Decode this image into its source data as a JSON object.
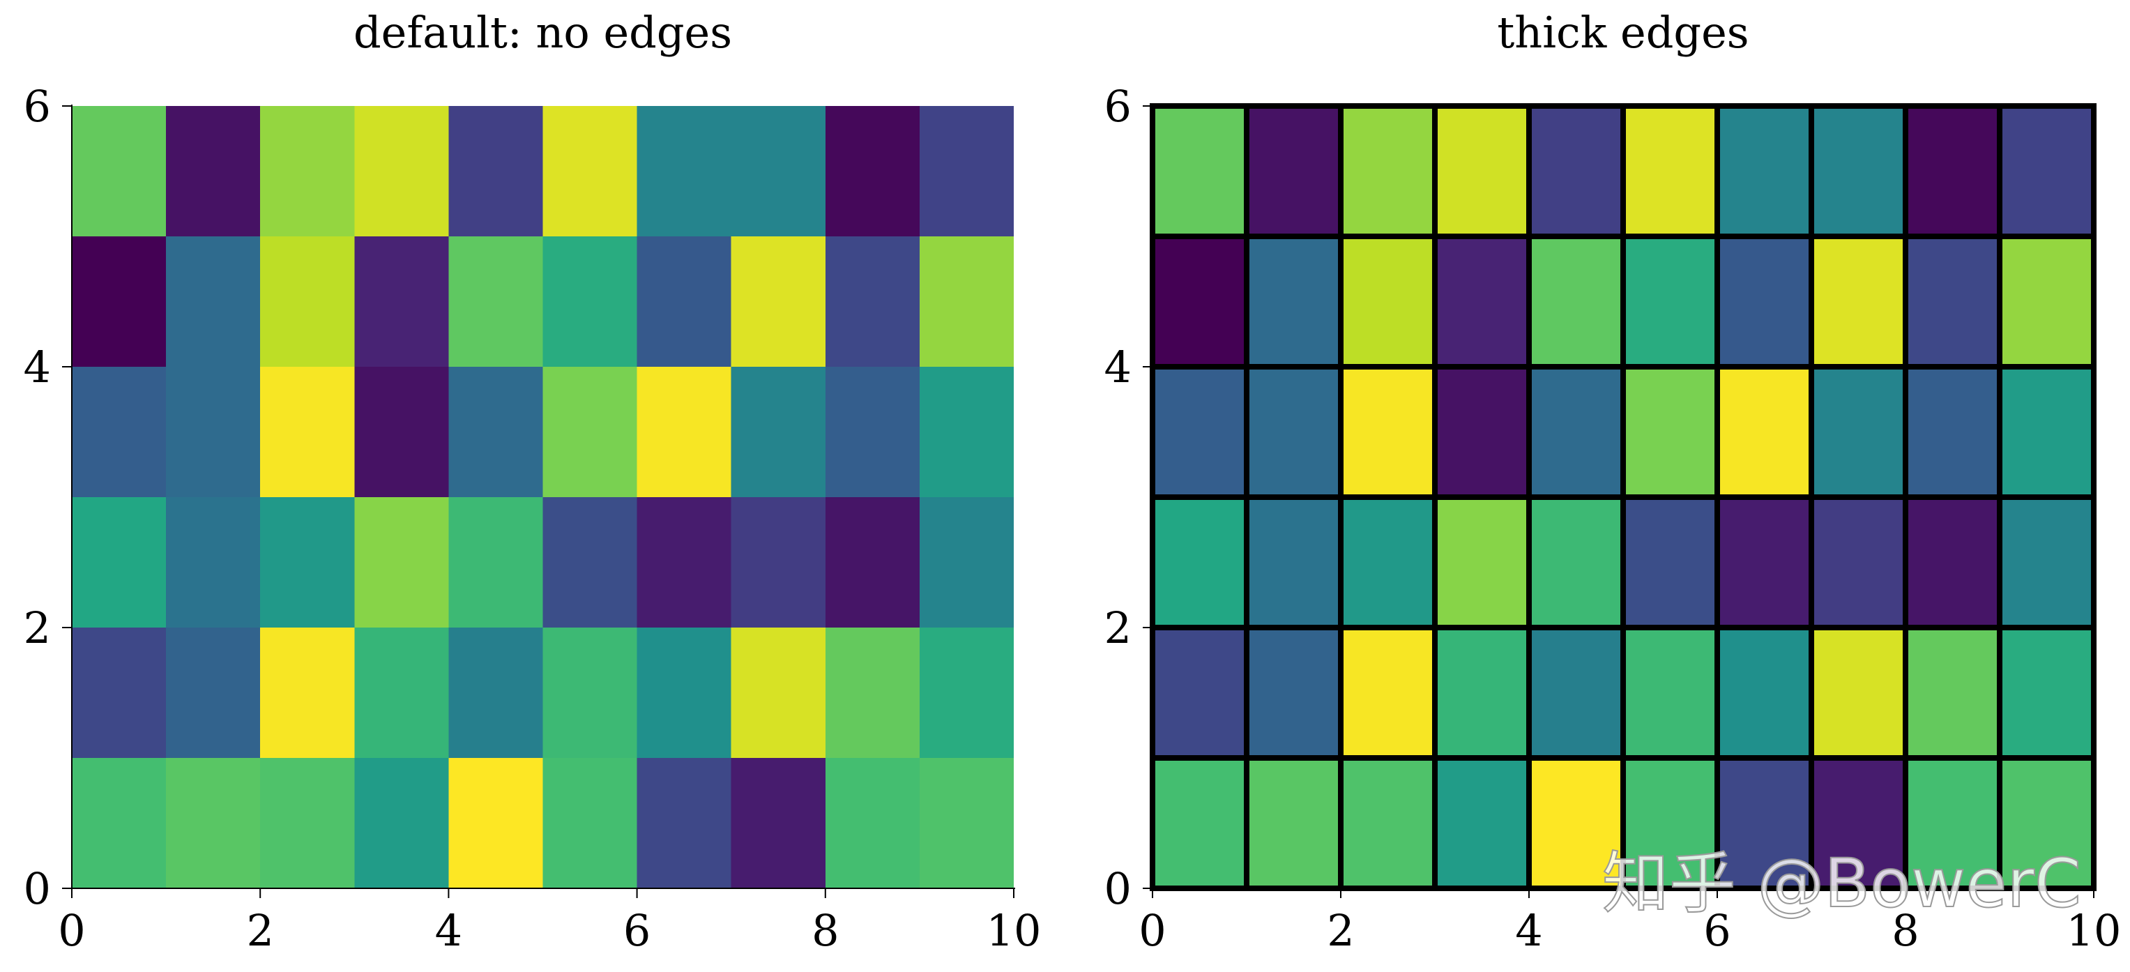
{
  "colormap": "viridis",
  "watermark": "知乎 @BowerC",
  "chart_data": [
    {
      "type": "heatmap",
      "title": "default: no edges",
      "edges": "none",
      "x_edges": [
        0,
        1,
        2,
        3,
        4,
        5,
        6,
        7,
        8,
        9,
        10
      ],
      "y_edges": [
        0,
        1,
        2,
        3,
        4,
        5,
        6
      ],
      "xlim": [
        0,
        10
      ],
      "ylim": [
        0,
        6
      ],
      "x_ticks": [
        0,
        2,
        4,
        6,
        8,
        10
      ],
      "y_ticks": [
        0,
        2,
        4,
        6
      ],
      "x_tick_labels": [
        "0",
        "2",
        "4",
        "6",
        "8",
        "10"
      ],
      "y_tick_labels": [
        "0",
        "2",
        "4",
        "6"
      ],
      "rows_bottom_to_top": [
        [
          0.7,
          0.74,
          0.72,
          0.55,
          1.0,
          0.7,
          0.22,
          0.08,
          0.7,
          0.72
        ],
        [
          0.22,
          0.32,
          0.99,
          0.66,
          0.43,
          0.68,
          0.5,
          0.94,
          0.76,
          0.62
        ],
        [
          0.6,
          0.38,
          0.54,
          0.82,
          0.68,
          0.24,
          0.08,
          0.18,
          0.06,
          0.45
        ],
        [
          0.3,
          0.35,
          0.99,
          0.05,
          0.35,
          0.8,
          0.99,
          0.45,
          0.3,
          0.55
        ],
        [
          0.0,
          0.35,
          0.9,
          0.1,
          0.75,
          0.62,
          0.28,
          0.95,
          0.22,
          0.84
        ],
        [
          0.76,
          0.05,
          0.84,
          0.93,
          0.19,
          0.95,
          0.45,
          0.45,
          0.02,
          0.2
        ]
      ]
    },
    {
      "type": "heatmap",
      "title": "thick edges",
      "edges": "thick-black",
      "x_edges": [
        0,
        1,
        2,
        3,
        4,
        5,
        6,
        7,
        8,
        9,
        10
      ],
      "y_edges": [
        0,
        1,
        2,
        3,
        4,
        5,
        6
      ],
      "xlim": [
        0,
        10
      ],
      "ylim": [
        0,
        6
      ],
      "x_ticks": [
        0,
        2,
        4,
        6,
        8,
        10
      ],
      "y_ticks": [
        0,
        2,
        4,
        6
      ],
      "x_tick_labels": [
        "0",
        "2",
        "4",
        "6",
        "8",
        "10"
      ],
      "y_tick_labels": [
        "0",
        "2",
        "4",
        "6"
      ],
      "rows_bottom_to_top": [
        [
          0.7,
          0.74,
          0.72,
          0.55,
          1.0,
          0.7,
          0.22,
          0.08,
          0.7,
          0.72
        ],
        [
          0.22,
          0.32,
          0.99,
          0.66,
          0.43,
          0.68,
          0.5,
          0.94,
          0.76,
          0.62
        ],
        [
          0.6,
          0.38,
          0.54,
          0.82,
          0.68,
          0.24,
          0.08,
          0.18,
          0.06,
          0.45
        ],
        [
          0.3,
          0.35,
          0.99,
          0.05,
          0.35,
          0.8,
          0.99,
          0.45,
          0.3,
          0.55
        ],
        [
          0.0,
          0.35,
          0.9,
          0.1,
          0.75,
          0.62,
          0.28,
          0.95,
          0.22,
          0.84
        ],
        [
          0.76,
          0.05,
          0.84,
          0.93,
          0.19,
          0.95,
          0.45,
          0.45,
          0.02,
          0.2
        ]
      ]
    }
  ]
}
